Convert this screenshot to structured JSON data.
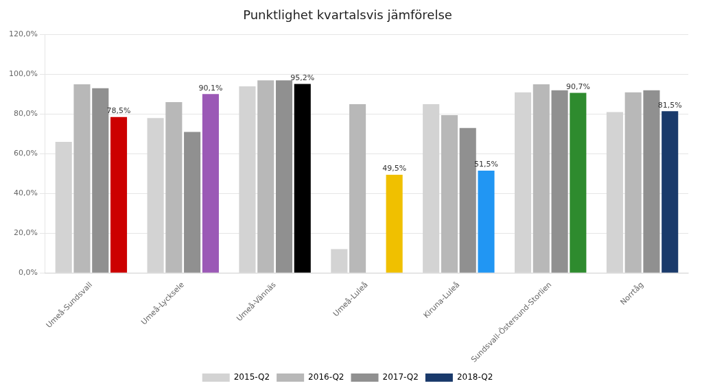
{
  "chart_data": {
    "type": "bar",
    "title": "Punktlighet kvartalsvis jämförelse",
    "categories": [
      "Umeå-Sundsvall",
      "Umeå-Lycksele",
      "Umeå-Vännäs",
      "Umeå-Luleå",
      "Kiruna-Luleå",
      "Sundsvall-Östersund-Storlien",
      "Norrtåg"
    ],
    "series": [
      {
        "name": "2015-Q2",
        "color": "#d3d3d3",
        "values": [
          66.0,
          78.0,
          94.0,
          12.0,
          85.0,
          91.0,
          81.0
        ]
      },
      {
        "name": "2016-Q2",
        "color": "#b8b8b8",
        "values": [
          95.0,
          86.0,
          97.0,
          85.0,
          79.5,
          95.0,
          91.0
        ]
      },
      {
        "name": "2017-Q2",
        "color": "#909090",
        "values": [
          93.0,
          71.0,
          97.0,
          null,
          73.0,
          92.0,
          92.0
        ]
      },
      {
        "name": "2018-Q2",
        "color": "#1a3a6b",
        "colors": [
          "#cc0000",
          "#9b59b6",
          "#000000",
          "#f0c000",
          "#2196f3",
          "#2e8b2e",
          "#1a3a6b"
        ],
        "values": [
          78.5,
          90.1,
          95.2,
          49.5,
          51.5,
          90.7,
          81.5
        ],
        "data_labels": true,
        "value_labels": [
          "78,5%",
          "90,1%",
          "95,2%",
          "49,5%",
          "51,5%",
          "90,7%",
          "81,5%"
        ]
      }
    ],
    "ylim": [
      0,
      120
    ],
    "yticks": [
      {
        "value": 0,
        "label": "0,0%"
      },
      {
        "value": 20,
        "label": "20,0%"
      },
      {
        "value": 40,
        "label": "40,0%"
      },
      {
        "value": 60,
        "label": "60,0%"
      },
      {
        "value": 80,
        "label": "80,0%"
      },
      {
        "value": 100,
        "label": "100,0%"
      },
      {
        "value": 120,
        "label": "120,0%"
      }
    ],
    "grid": true,
    "legend": "bottom"
  }
}
